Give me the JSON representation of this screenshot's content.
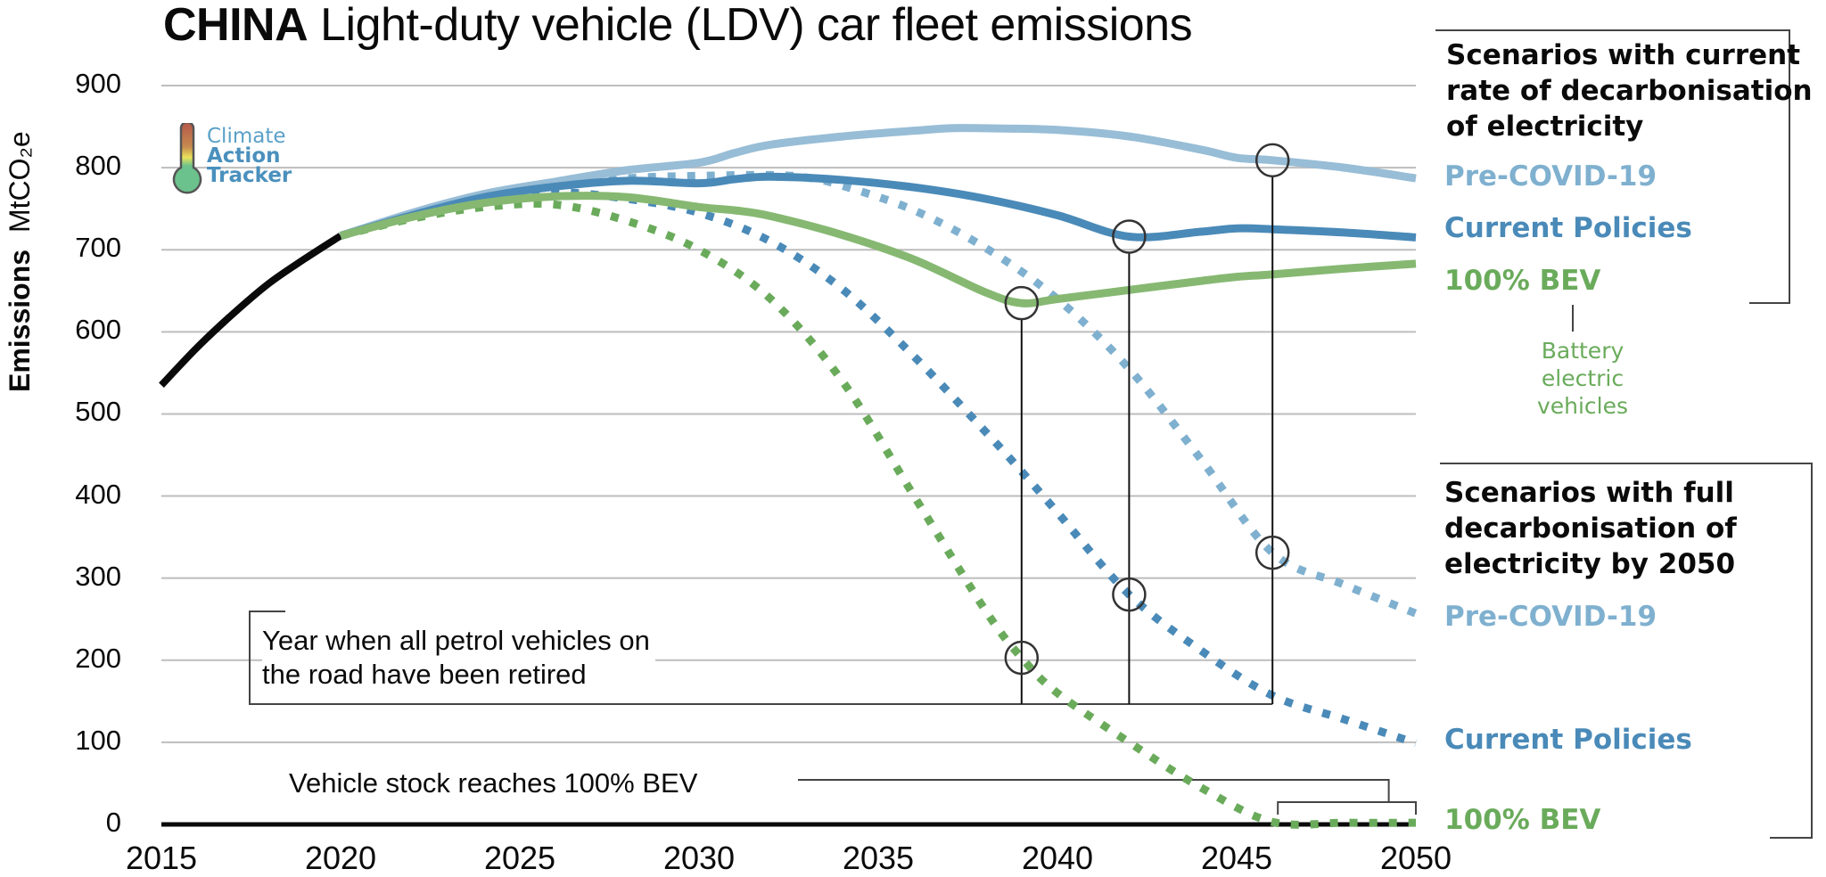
{
  "title": {
    "country": "CHINA",
    "rest": "Light-duty vehicle (LDV) car fleet emissions"
  },
  "logo": {
    "line1": "Climate",
    "line2": "Action",
    "line3": "Tracker"
  },
  "legend": {
    "group1": {
      "heading": [
        "Scenarios with current",
        "rate of decarbonisation",
        "of electricity"
      ],
      "items": [
        {
          "label": "Pre-COVID-19",
          "color": "#7fb0cf"
        },
        {
          "label": "Current Policies",
          "color": "#4a8ab8"
        },
        {
          "label": "100% BEV",
          "color": "#6aab5b"
        }
      ],
      "bev_note": [
        "Battery",
        "electric",
        "vehicles"
      ]
    },
    "group2": {
      "heading": [
        "Scenarios with full",
        "decarbonisation of",
        "electricity by 2050"
      ],
      "items": [
        {
          "label": "Pre-COVID-19",
          "color": "#7fb0cf"
        },
        {
          "label": "Current Policies",
          "color": "#4a8ab8"
        },
        {
          "label": "100% BEV",
          "color": "#6aab5b"
        }
      ]
    }
  },
  "annotations": {
    "retired": [
      "Year when all petrol vehicles on",
      "the road have been retired"
    ],
    "stock": "Vehicle stock reaches 100% BEV"
  },
  "chart_data": {
    "type": "line",
    "title": "CHINA Light-duty vehicle (LDV) car fleet emissions",
    "ylabel_bold": "Emissions",
    "ylabel_unit": "MtCO₂e",
    "xlabel": "",
    "xlim": [
      2015,
      2050
    ],
    "ylim": [
      0,
      900
    ],
    "x_ticks": [
      2015,
      2020,
      2025,
      2030,
      2035,
      2040,
      2045,
      2050
    ],
    "y_ticks": [
      0,
      100,
      200,
      300,
      400,
      500,
      600,
      700,
      800,
      900
    ],
    "grid": true,
    "legend_position": "right",
    "series": [
      {
        "name": "Historical",
        "style": "solid",
        "color": "#0a0a0a",
        "x": [
          2015,
          2016,
          2017,
          2018,
          2019,
          2020
        ],
        "y": [
          535,
          581,
          622,
          659,
          689,
          717
        ]
      },
      {
        "name": "Pre-COVID-19 (current rate of decarbonisation)",
        "style": "solid",
        "color": "#98bdd6",
        "x": [
          2020,
          2022,
          2024,
          2026,
          2028,
          2030,
          2031,
          2032,
          2034,
          2036,
          2037,
          2038,
          2040,
          2042,
          2044,
          2045,
          2046,
          2048,
          2050
        ],
        "y": [
          717,
          745,
          768,
          783,
          797,
          806,
          818,
          828,
          838,
          845,
          848,
          848,
          846,
          838,
          822,
          812,
          809,
          800,
          787
        ]
      },
      {
        "name": "Current Policies (current rate of decarbonisation)",
        "style": "solid",
        "color": "#4a8ab8",
        "x": [
          2020,
          2022,
          2024,
          2026,
          2028,
          2030,
          2031,
          2032,
          2034,
          2036,
          2038,
          2040,
          2042,
          2044,
          2045,
          2046,
          2048,
          2050
        ],
        "y": [
          717,
          742,
          764,
          777,
          784,
          781,
          786,
          789,
          785,
          776,
          762,
          742,
          716,
          722,
          726,
          725,
          721,
          715
        ]
      },
      {
        "name": "100% BEV (current rate of decarbonisation)",
        "style": "solid",
        "color": "#86b872",
        "x": [
          2020,
          2022,
          2024,
          2026,
          2028,
          2030,
          2031,
          2032,
          2034,
          2036,
          2038,
          2039,
          2040,
          2042,
          2044,
          2045,
          2046,
          2048,
          2050
        ],
        "y": [
          717,
          740,
          757,
          765,
          764,
          752,
          748,
          741,
          718,
          688,
          648,
          635,
          640,
          651,
          662,
          667,
          670,
          677,
          683
        ]
      },
      {
        "name": "Pre-COVID-19 (full decarbonisation by 2050)",
        "style": "dotted",
        "color": "#7fb0cf",
        "x": [
          2020,
          2022,
          2024,
          2026,
          2028,
          2030,
          2032,
          2033,
          2034,
          2036,
          2038,
          2040,
          2042,
          2044,
          2046,
          2048,
          2050
        ],
        "y": [
          717,
          742,
          764,
          777,
          787,
          790,
          791,
          788,
          778,
          748,
          702,
          640,
          555,
          445,
          331,
          292,
          257
        ]
      },
      {
        "name": "Current Policies (full decarbonisation by 2050)",
        "style": "dotted",
        "color": "#4a8ab8",
        "x": [
          2020,
          2022,
          2024,
          2026,
          2028,
          2030,
          2032,
          2034,
          2036,
          2038,
          2039,
          2040,
          2042,
          2044,
          2046,
          2048,
          2050
        ],
        "y": [
          717,
          742,
          762,
          770,
          762,
          745,
          710,
          652,
          570,
          478,
          430,
          380,
          280,
          212,
          157,
          128,
          99
        ]
      },
      {
        "name": "100% BEV (full decarbonisation by 2050)",
        "style": "dotted",
        "color": "#6aab5b",
        "x": [
          2020,
          2022,
          2024,
          2026,
          2028,
          2030,
          2032,
          2034,
          2036,
          2038,
          2039,
          2040,
          2042,
          2044,
          2046,
          2048,
          2050
        ],
        "y": [
          717,
          738,
          752,
          755,
          735,
          700,
          640,
          540,
          400,
          260,
          203,
          160,
          100,
          45,
          3,
          2,
          2
        ]
      }
    ],
    "markers": [
      {
        "label": "Year all petrol vehicles retired — 100% BEV",
        "x": 2039,
        "y_top": 635,
        "y_bottom": 203
      },
      {
        "label": "Year all petrol vehicles retired — Current Policies",
        "x": 2042,
        "y_top": 716,
        "y_bottom": 280
      },
      {
        "label": "Year all petrol vehicles retired — Pre-COVID-19",
        "x": 2046,
        "y_top": 809,
        "y_bottom": 331
      }
    ],
    "stock_100pct_bev_range": [
      2046,
      2050
    ]
  }
}
